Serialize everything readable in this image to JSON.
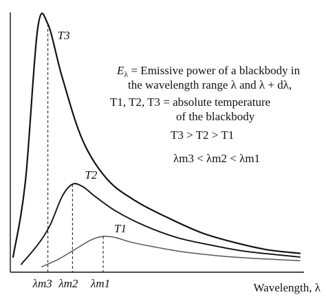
{
  "chart_data": {
    "type": "line",
    "title": "",
    "xlabel": "Wavelength, λ",
    "ylabel": "",
    "grid": false,
    "series": [
      {
        "name": "T3",
        "peak_label": "λm3",
        "color": "#111111",
        "points": [
          [
            0.0,
            0.04
          ],
          [
            0.3,
            0.35
          ],
          [
            0.6,
            0.98
          ],
          [
            0.85,
            1.0
          ],
          [
            1.2,
            0.78
          ],
          [
            1.7,
            0.52
          ],
          [
            2.3,
            0.36
          ],
          [
            3.0,
            0.27
          ],
          [
            3.8,
            0.2
          ],
          [
            4.6,
            0.14
          ],
          [
            5.4,
            0.1
          ],
          [
            6.2,
            0.07
          ],
          [
            7.0,
            0.055
          ]
        ]
      },
      {
        "name": "T2",
        "peak_label": "λm2",
        "color": "#111111",
        "points": [
          [
            0.2,
            0.01
          ],
          [
            0.6,
            0.09
          ],
          [
            0.9,
            0.17
          ],
          [
            1.2,
            0.29
          ],
          [
            1.45,
            0.34
          ],
          [
            1.7,
            0.33
          ],
          [
            2.0,
            0.29
          ],
          [
            2.5,
            0.23
          ],
          [
            3.2,
            0.17
          ],
          [
            4.0,
            0.12
          ],
          [
            4.8,
            0.09
          ],
          [
            5.6,
            0.065
          ],
          [
            6.4,
            0.05
          ],
          [
            7.0,
            0.04
          ]
        ]
      },
      {
        "name": "T1",
        "peak_label": "λm1",
        "color": "#555555",
        "points": [
          [
            0.7,
            0.0
          ],
          [
            1.1,
            0.03
          ],
          [
            1.5,
            0.07
          ],
          [
            1.9,
            0.11
          ],
          [
            2.2,
            0.125
          ],
          [
            2.5,
            0.12
          ],
          [
            2.9,
            0.1
          ],
          [
            3.5,
            0.08
          ],
          [
            4.2,
            0.06
          ],
          [
            5.0,
            0.045
          ],
          [
            5.8,
            0.035
          ],
          [
            6.6,
            0.028
          ],
          [
            7.0,
            0.025
          ]
        ]
      }
    ],
    "peaks": [
      {
        "label": "λm3",
        "x": 0.85,
        "y": 1.0
      },
      {
        "label": "λm2",
        "x": 1.45,
        "y": 0.34
      },
      {
        "label": "λm1",
        "x": 2.2,
        "y": 0.125
      }
    ],
    "xlim": [
      0,
      7.0
    ],
    "ylim": [
      0,
      1.0
    ]
  },
  "legend": {
    "line1_symbol": "E",
    "line1_symbol_sub": "λ",
    "line1_text": " = Emissive power of a blackbody in",
    "line2_text": "the wavelength range λ and λ + dλ,",
    "line3_text": "T1, T2, T3 = absolute temperature",
    "line4_text": "of the blackbody",
    "line5_text": "T3 > T2 > T1",
    "line6_text": "λm3 < λm2 < λm1"
  }
}
